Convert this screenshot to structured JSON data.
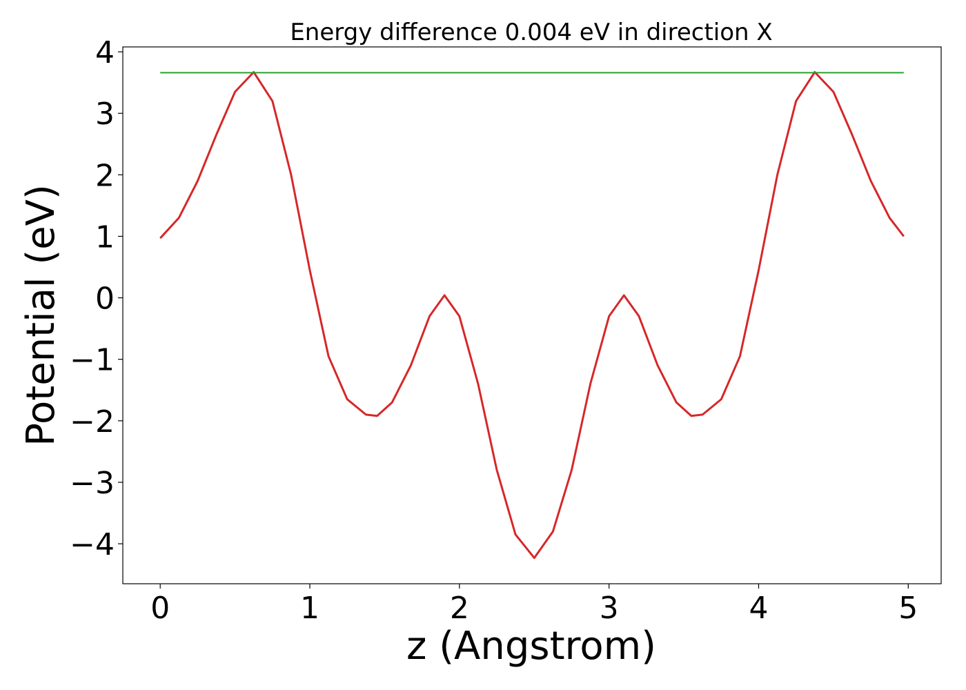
{
  "chart_data": {
    "type": "line",
    "title": "Energy difference 0.004 eV in direction X",
    "xlabel": "z (Angstrom)",
    "ylabel": "Potential (eV)",
    "xlim": [
      -0.25,
      5.22
    ],
    "ylim": [
      -4.65,
      4.08
    ],
    "xticks": [
      0,
      1,
      2,
      3,
      4,
      5
    ],
    "xtick_labels": [
      "0",
      "1",
      "2",
      "3",
      "4",
      "5"
    ],
    "yticks": [
      4,
      3,
      2,
      1,
      0,
      -1,
      -2,
      -3,
      -4
    ],
    "ytick_labels": [
      "4",
      "3",
      "2",
      "1",
      "0",
      "−1",
      "−2",
      "−3",
      "−4"
    ],
    "grid": false,
    "series": [
      {
        "color": "#d62728",
        "x": [
          0.0,
          0.125,
          0.25,
          0.375,
          0.5,
          0.625,
          0.75,
          0.875,
          1.0,
          1.125,
          1.25,
          1.375,
          1.45,
          1.55,
          1.675,
          1.8,
          1.9,
          2.0,
          2.125,
          2.25,
          2.375,
          2.5,
          2.625,
          2.75,
          2.875,
          3.0,
          3.1,
          3.2,
          3.325,
          3.45,
          3.55,
          3.625,
          3.75,
          3.875,
          4.0,
          4.125,
          4.25,
          4.375,
          4.5,
          4.625,
          4.75,
          4.875,
          4.97
        ],
        "y": [
          0.97,
          1.3,
          1.9,
          2.65,
          3.35,
          3.67,
          3.2,
          2.0,
          0.45,
          -0.95,
          -1.65,
          -1.9,
          -1.92,
          -1.7,
          -1.1,
          -0.3,
          0.04,
          -0.3,
          -1.4,
          -2.8,
          -3.85,
          -4.23,
          -3.8,
          -2.8,
          -1.4,
          -0.3,
          0.04,
          -0.3,
          -1.1,
          -1.7,
          -1.92,
          -1.9,
          -1.65,
          -0.95,
          0.45,
          2.0,
          3.2,
          3.67,
          3.35,
          2.65,
          1.9,
          1.3,
          1.0
        ]
      },
      {
        "color": "#2ca02c",
        "x": [
          0.0,
          4.97
        ],
        "y": [
          3.66,
          3.66
        ]
      }
    ]
  }
}
